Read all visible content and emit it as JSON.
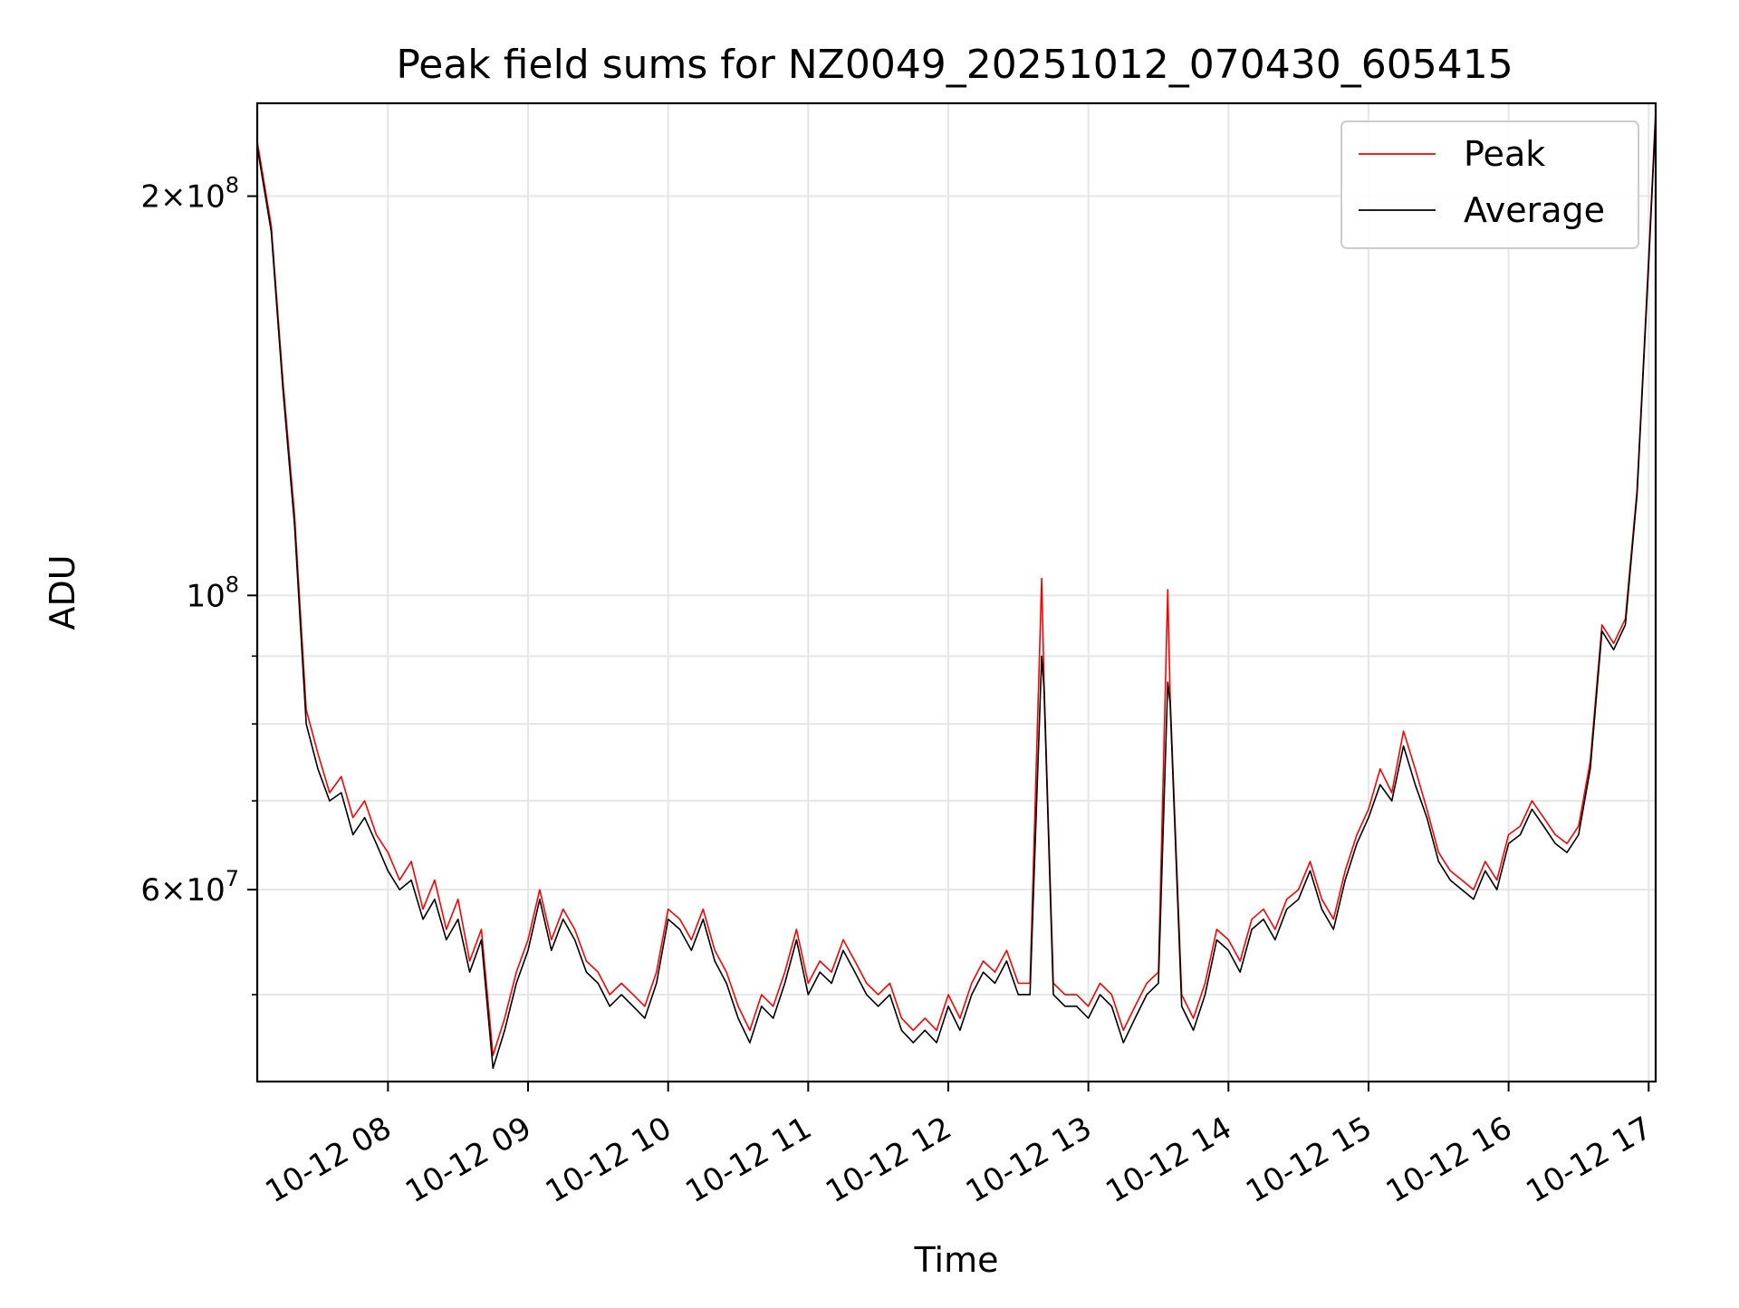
{
  "chart_data": {
    "type": "line",
    "title": "Peak field sums for NZ0049_20251012_070430_605415",
    "xlabel": "Time",
    "ylabel": "ADU",
    "y_scale": "log",
    "grid": true,
    "legend_placement": "upper-right",
    "xlim": [
      "2025-10-12 07:04",
      "2025-10-12 17:03"
    ],
    "ylim": [
      43000000,
      235000000
    ],
    "x_ticks": [
      "10-12 08",
      "10-12 09",
      "10-12 10",
      "10-12 11",
      "10-12 12",
      "10-12 13",
      "10-12 14",
      "10-12 15",
      "10-12 16",
      "10-12 17"
    ],
    "y_major_ticks": [
      {
        "value": 60000000,
        "mantissa": "6",
        "exponent": "7",
        "label": "6 × 10^7"
      },
      {
        "value": 100000000,
        "mantissa": "",
        "exponent": "8",
        "label": "10^8"
      },
      {
        "value": 200000000,
        "mantissa": "2",
        "exponent": "8",
        "label": "2 × 10^8"
      }
    ],
    "y_minor_ticks": [
      50000000,
      70000000,
      80000000,
      90000000
    ],
    "colors": {
      "peak": "#ff0000",
      "average": "#000000",
      "grid": "#e6e6e6"
    },
    "series": [
      {
        "name": "Peak",
        "color": "#ff0000",
        "points": [
          [
            "07:04",
            220000000
          ],
          [
            "07:10",
            190000000
          ],
          [
            "07:15",
            145000000
          ],
          [
            "07:20",
            115000000
          ],
          [
            "07:25",
            82000000
          ],
          [
            "07:30",
            76000000
          ],
          [
            "07:35",
            71000000
          ],
          [
            "07:40",
            73000000
          ],
          [
            "07:45",
            68000000
          ],
          [
            "07:50",
            70000000
          ],
          [
            "07:55",
            66000000
          ],
          [
            "08:00",
            64000000
          ],
          [
            "08:05",
            61000000
          ],
          [
            "08:10",
            63000000
          ],
          [
            "08:15",
            58000000
          ],
          [
            "08:20",
            61000000
          ],
          [
            "08:25",
            56000000
          ],
          [
            "08:30",
            59000000
          ],
          [
            "08:35",
            53000000
          ],
          [
            "08:40",
            56000000
          ],
          [
            "08:45",
            45000000
          ],
          [
            "08:50",
            48000000
          ],
          [
            "08:55",
            52000000
          ],
          [
            "09:00",
            55000000
          ],
          [
            "09:05",
            60000000
          ],
          [
            "09:10",
            55000000
          ],
          [
            "09:15",
            58000000
          ],
          [
            "09:20",
            56000000
          ],
          [
            "09:25",
            53000000
          ],
          [
            "09:30",
            52000000
          ],
          [
            "09:35",
            50000000
          ],
          [
            "09:40",
            51000000
          ],
          [
            "09:45",
            50000000
          ],
          [
            "09:50",
            49000000
          ],
          [
            "09:55",
            52000000
          ],
          [
            "10:00",
            58000000
          ],
          [
            "10:05",
            57000000
          ],
          [
            "10:10",
            55000000
          ],
          [
            "10:15",
            58000000
          ],
          [
            "10:20",
            54000000
          ],
          [
            "10:25",
            52000000
          ],
          [
            "10:30",
            49000000
          ],
          [
            "10:35",
            47000000
          ],
          [
            "10:40",
            50000000
          ],
          [
            "10:45",
            49000000
          ],
          [
            "10:50",
            52000000
          ],
          [
            "10:55",
            56000000
          ],
          [
            "11:00",
            51000000
          ],
          [
            "11:05",
            53000000
          ],
          [
            "11:10",
            52000000
          ],
          [
            "11:15",
            55000000
          ],
          [
            "11:20",
            53000000
          ],
          [
            "11:25",
            51000000
          ],
          [
            "11:30",
            50000000
          ],
          [
            "11:35",
            51000000
          ],
          [
            "11:40",
            48000000
          ],
          [
            "11:45",
            47000000
          ],
          [
            "11:50",
            48000000
          ],
          [
            "11:55",
            47000000
          ],
          [
            "12:00",
            50000000
          ],
          [
            "12:05",
            48000000
          ],
          [
            "12:10",
            51000000
          ],
          [
            "12:15",
            53000000
          ],
          [
            "12:20",
            52000000
          ],
          [
            "12:25",
            54000000
          ],
          [
            "12:30",
            51000000
          ],
          [
            "12:35",
            51000000
          ],
          [
            "12:40",
            103000000
          ],
          [
            "12:41",
            86000000
          ],
          [
            "12:45",
            51000000
          ],
          [
            "12:50",
            50000000
          ],
          [
            "12:55",
            50000000
          ],
          [
            "13:00",
            49000000
          ],
          [
            "13:05",
            51000000
          ],
          [
            "13:10",
            50000000
          ],
          [
            "13:15",
            47000000
          ],
          [
            "13:20",
            49000000
          ],
          [
            "13:25",
            51000000
          ],
          [
            "13:30",
            52000000
          ],
          [
            "13:34",
            101000000
          ],
          [
            "13:35",
            84000000
          ],
          [
            "13:40",
            50000000
          ],
          [
            "13:45",
            48000000
          ],
          [
            "13:50",
            51000000
          ],
          [
            "13:55",
            56000000
          ],
          [
            "14:00",
            55000000
          ],
          [
            "14:05",
            53000000
          ],
          [
            "14:10",
            57000000
          ],
          [
            "14:15",
            58000000
          ],
          [
            "14:20",
            56000000
          ],
          [
            "14:25",
            59000000
          ],
          [
            "14:30",
            60000000
          ],
          [
            "14:35",
            63000000
          ],
          [
            "14:40",
            59000000
          ],
          [
            "14:45",
            57000000
          ],
          [
            "14:50",
            62000000
          ],
          [
            "14:55",
            66000000
          ],
          [
            "15:00",
            69000000
          ],
          [
            "15:05",
            74000000
          ],
          [
            "15:10",
            71000000
          ],
          [
            "15:15",
            79000000
          ],
          [
            "15:20",
            74000000
          ],
          [
            "15:25",
            69000000
          ],
          [
            "15:30",
            64000000
          ],
          [
            "15:35",
            62000000
          ],
          [
            "15:40",
            61000000
          ],
          [
            "15:45",
            60000000
          ],
          [
            "15:50",
            63000000
          ],
          [
            "15:55",
            61000000
          ],
          [
            "16:00",
            66000000
          ],
          [
            "16:05",
            67000000
          ],
          [
            "16:10",
            70000000
          ],
          [
            "16:15",
            68000000
          ],
          [
            "16:20",
            66000000
          ],
          [
            "16:25",
            65000000
          ],
          [
            "16:30",
            67000000
          ],
          [
            "16:35",
            75000000
          ],
          [
            "16:40",
            95000000
          ],
          [
            "16:45",
            92000000
          ],
          [
            "16:50",
            96000000
          ],
          [
            "16:55",
            120000000
          ],
          [
            "17:00",
            180000000
          ],
          [
            "17:03",
            232000000
          ]
        ]
      },
      {
        "name": "Average",
        "color": "#000000",
        "points": [
          [
            "07:04",
            218000000
          ],
          [
            "07:10",
            188000000
          ],
          [
            "07:15",
            143000000
          ],
          [
            "07:20",
            113000000
          ],
          [
            "07:25",
            80000000
          ],
          [
            "07:30",
            74000000
          ],
          [
            "07:35",
            70000000
          ],
          [
            "07:40",
            71000000
          ],
          [
            "07:45",
            66000000
          ],
          [
            "07:50",
            68000000
          ],
          [
            "07:55",
            65000000
          ],
          [
            "08:00",
            62000000
          ],
          [
            "08:05",
            60000000
          ],
          [
            "08:10",
            61000000
          ],
          [
            "08:15",
            57000000
          ],
          [
            "08:20",
            59000000
          ],
          [
            "08:25",
            55000000
          ],
          [
            "08:30",
            57000000
          ],
          [
            "08:35",
            52000000
          ],
          [
            "08:40",
            55000000
          ],
          [
            "08:45",
            44000000
          ],
          [
            "08:50",
            47000000
          ],
          [
            "08:55",
            51000000
          ],
          [
            "09:00",
            54000000
          ],
          [
            "09:05",
            59000000
          ],
          [
            "09:10",
            54000000
          ],
          [
            "09:15",
            57000000
          ],
          [
            "09:20",
            55000000
          ],
          [
            "09:25",
            52000000
          ],
          [
            "09:30",
            51000000
          ],
          [
            "09:35",
            49000000
          ],
          [
            "09:40",
            50000000
          ],
          [
            "09:45",
            49000000
          ],
          [
            "09:50",
            48000000
          ],
          [
            "09:55",
            51000000
          ],
          [
            "10:00",
            57000000
          ],
          [
            "10:05",
            56000000
          ],
          [
            "10:10",
            54000000
          ],
          [
            "10:15",
            57000000
          ],
          [
            "10:20",
            53000000
          ],
          [
            "10:25",
            51000000
          ],
          [
            "10:30",
            48000000
          ],
          [
            "10:35",
            46000000
          ],
          [
            "10:40",
            49000000
          ],
          [
            "10:45",
            48000000
          ],
          [
            "10:50",
            51000000
          ],
          [
            "10:55",
            55000000
          ],
          [
            "11:00",
            50000000
          ],
          [
            "11:05",
            52000000
          ],
          [
            "11:10",
            51000000
          ],
          [
            "11:15",
            54000000
          ],
          [
            "11:20",
            52000000
          ],
          [
            "11:25",
            50000000
          ],
          [
            "11:30",
            49000000
          ],
          [
            "11:35",
            50000000
          ],
          [
            "11:40",
            47000000
          ],
          [
            "11:45",
            46000000
          ],
          [
            "11:50",
            47000000
          ],
          [
            "11:55",
            46000000
          ],
          [
            "12:00",
            49000000
          ],
          [
            "12:05",
            47000000
          ],
          [
            "12:10",
            50000000
          ],
          [
            "12:15",
            52000000
          ],
          [
            "12:20",
            51000000
          ],
          [
            "12:25",
            53000000
          ],
          [
            "12:30",
            50000000
          ],
          [
            "12:35",
            50000000
          ],
          [
            "12:40",
            90000000
          ],
          [
            "12:41",
            85000000
          ],
          [
            "12:45",
            50000000
          ],
          [
            "12:50",
            49000000
          ],
          [
            "12:55",
            49000000
          ],
          [
            "13:00",
            48000000
          ],
          [
            "13:05",
            50000000
          ],
          [
            "13:10",
            49000000
          ],
          [
            "13:15",
            46000000
          ],
          [
            "13:20",
            48000000
          ],
          [
            "13:25",
            50000000
          ],
          [
            "13:30",
            51000000
          ],
          [
            "13:34",
            86000000
          ],
          [
            "13:35",
            83000000
          ],
          [
            "13:40",
            49000000
          ],
          [
            "13:45",
            47000000
          ],
          [
            "13:50",
            50000000
          ],
          [
            "13:55",
            55000000
          ],
          [
            "14:00",
            54000000
          ],
          [
            "14:05",
            52000000
          ],
          [
            "14:10",
            56000000
          ],
          [
            "14:15",
            57000000
          ],
          [
            "14:20",
            55000000
          ],
          [
            "14:25",
            58000000
          ],
          [
            "14:30",
            59000000
          ],
          [
            "14:35",
            62000000
          ],
          [
            "14:40",
            58000000
          ],
          [
            "14:45",
            56000000
          ],
          [
            "14:50",
            61000000
          ],
          [
            "14:55",
            65000000
          ],
          [
            "15:00",
            68000000
          ],
          [
            "15:05",
            72000000
          ],
          [
            "15:10",
            70000000
          ],
          [
            "15:15",
            77000000
          ],
          [
            "15:20",
            72000000
          ],
          [
            "15:25",
            68000000
          ],
          [
            "15:30",
            63000000
          ],
          [
            "15:35",
            61000000
          ],
          [
            "15:40",
            60000000
          ],
          [
            "15:45",
            59000000
          ],
          [
            "15:50",
            62000000
          ],
          [
            "15:55",
            60000000
          ],
          [
            "16:00",
            65000000
          ],
          [
            "16:05",
            66000000
          ],
          [
            "16:10",
            69000000
          ],
          [
            "16:15",
            67000000
          ],
          [
            "16:20",
            65000000
          ],
          [
            "16:25",
            64000000
          ],
          [
            "16:30",
            66000000
          ],
          [
            "16:35",
            74000000
          ],
          [
            "16:40",
            94000000
          ],
          [
            "16:45",
            91000000
          ],
          [
            "16:50",
            95000000
          ],
          [
            "16:55",
            119000000
          ],
          [
            "17:00",
            178000000
          ],
          [
            "17:03",
            230000000
          ]
        ]
      }
    ]
  }
}
